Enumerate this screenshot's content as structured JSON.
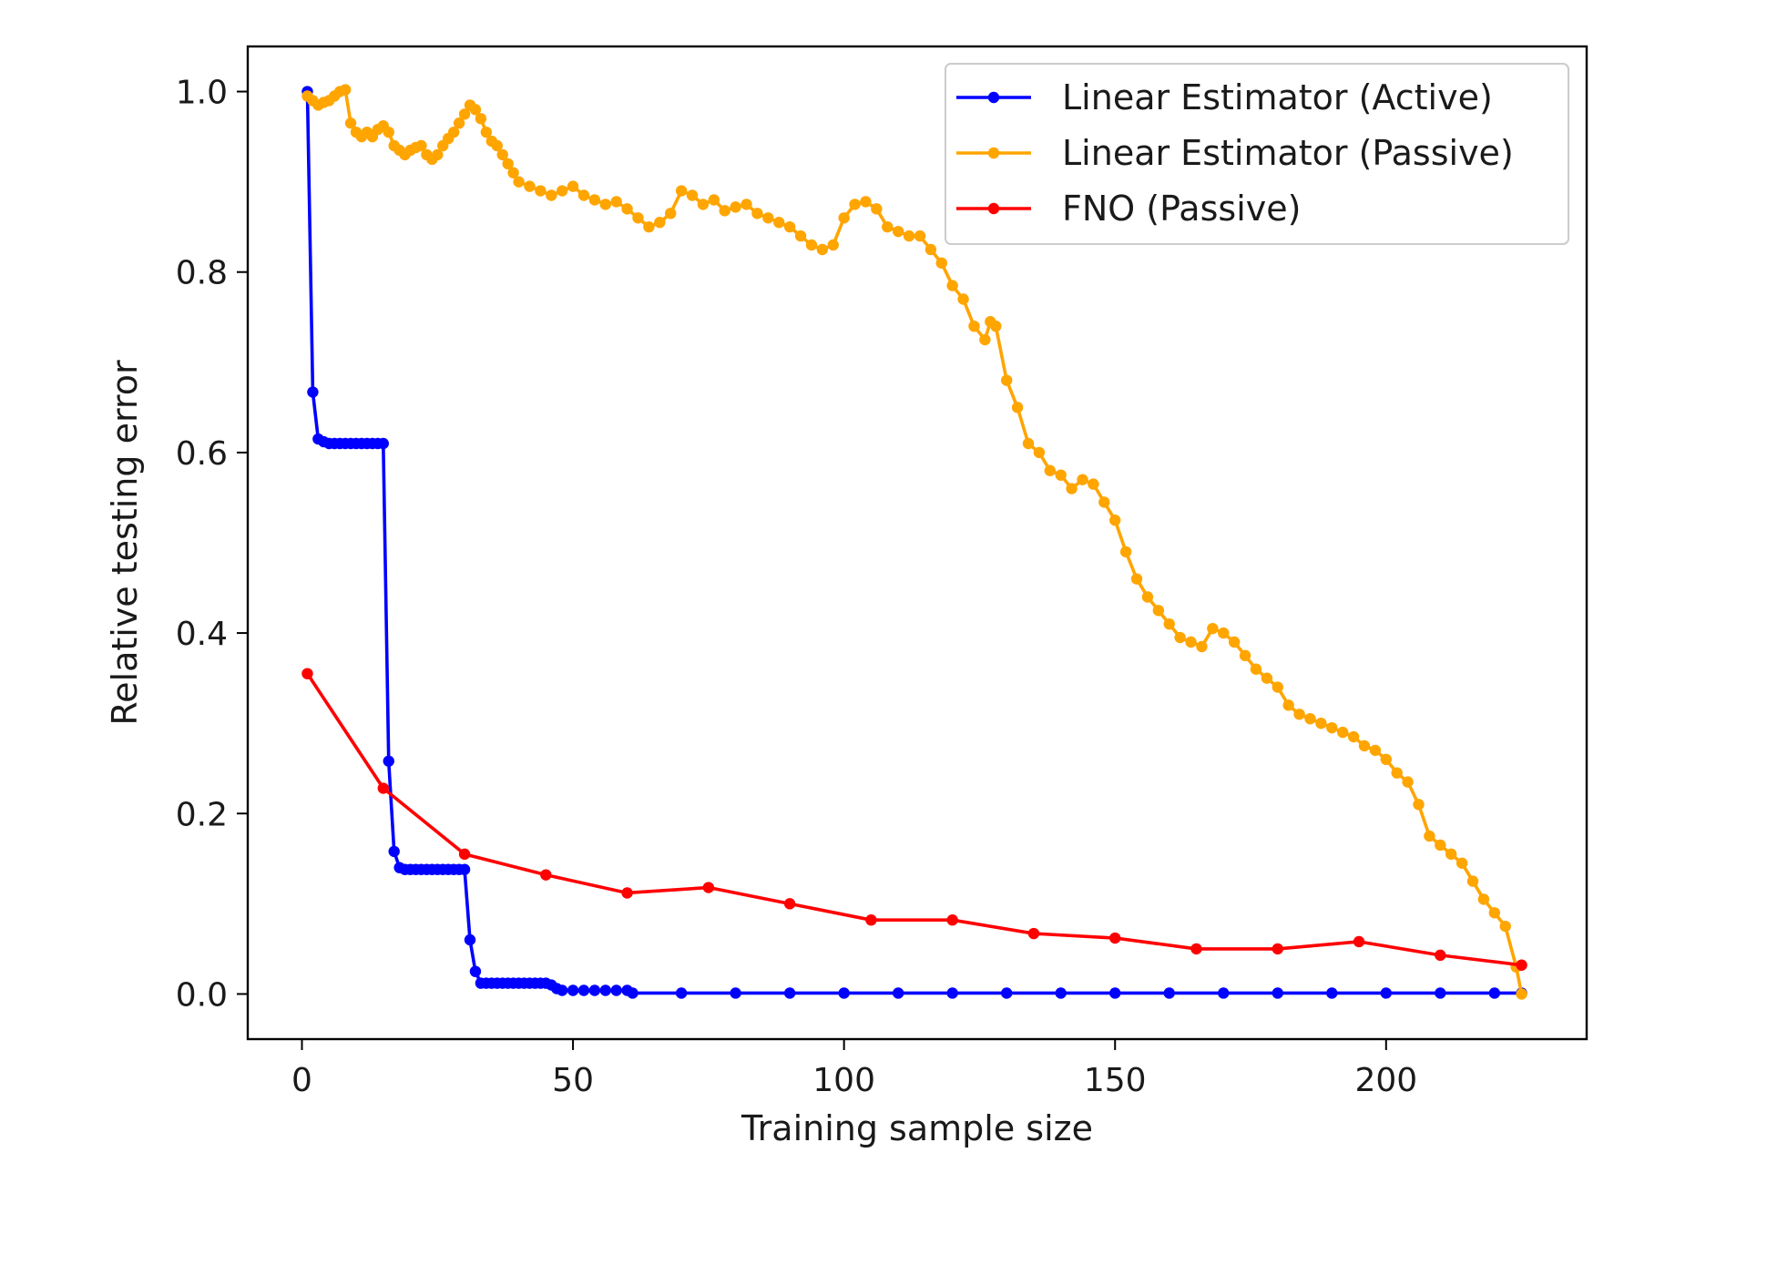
{
  "chart_data": {
    "type": "line",
    "title": "",
    "xlabel": "Training sample size",
    "ylabel": "Relative testing error",
    "xlim": [
      -10,
      237
    ],
    "ylim": [
      -0.05,
      1.05
    ],
    "xticks": [
      0,
      50,
      100,
      150,
      200
    ],
    "yticks": [
      0.0,
      0.2,
      0.4,
      0.6,
      0.8,
      1.0
    ],
    "xtick_labels": [
      "0",
      "50",
      "100",
      "150",
      "200"
    ],
    "ytick_labels": [
      "0.0",
      "0.2",
      "0.4",
      "0.6",
      "0.8",
      "1.0"
    ],
    "grid": false,
    "legend_position": "top-right",
    "series": [
      {
        "name": "Linear Estimator (Active)",
        "color": "#0000ff",
        "x": [
          1,
          2,
          3,
          4,
          5,
          6,
          7,
          8,
          9,
          10,
          11,
          12,
          13,
          14,
          15,
          16,
          17,
          18,
          19,
          20,
          21,
          22,
          23,
          24,
          25,
          26,
          27,
          28,
          29,
          30,
          31,
          32,
          33,
          34,
          35,
          36,
          37,
          38,
          39,
          40,
          41,
          42,
          43,
          44,
          45,
          46,
          47,
          48,
          50,
          52,
          54,
          56,
          58,
          60,
          61,
          70,
          80,
          90,
          100,
          110,
          120,
          130,
          140,
          150,
          160,
          170,
          180,
          190,
          200,
          210,
          220,
          225
        ],
        "y": [
          1.0,
          0.667,
          0.615,
          0.612,
          0.61,
          0.61,
          0.61,
          0.61,
          0.61,
          0.61,
          0.61,
          0.61,
          0.61,
          0.61,
          0.61,
          0.258,
          0.158,
          0.14,
          0.138,
          0.138,
          0.138,
          0.138,
          0.138,
          0.138,
          0.138,
          0.138,
          0.138,
          0.138,
          0.138,
          0.138,
          0.06,
          0.025,
          0.012,
          0.012,
          0.012,
          0.012,
          0.012,
          0.012,
          0.012,
          0.012,
          0.012,
          0.012,
          0.012,
          0.012,
          0.012,
          0.01,
          0.006,
          0.004,
          0.004,
          0.004,
          0.004,
          0.004,
          0.004,
          0.004,
          0.001,
          0.001,
          0.001,
          0.001,
          0.001,
          0.001,
          0.001,
          0.001,
          0.001,
          0.001,
          0.001,
          0.001,
          0.001,
          0.001,
          0.001,
          0.001,
          0.001,
          0.001
        ]
      },
      {
        "name": "Linear Estimator (Passive)",
        "color": "#ffa500",
        "x": [
          1,
          2,
          3,
          4,
          5,
          6,
          7,
          8,
          9,
          10,
          11,
          12,
          13,
          14,
          15,
          16,
          17,
          18,
          19,
          20,
          21,
          22,
          23,
          24,
          25,
          26,
          27,
          28,
          29,
          30,
          31,
          32,
          33,
          34,
          35,
          36,
          37,
          38,
          39,
          40,
          42,
          44,
          46,
          48,
          50,
          52,
          54,
          56,
          58,
          60,
          62,
          64,
          66,
          68,
          70,
          72,
          74,
          76,
          78,
          80,
          82,
          84,
          86,
          88,
          90,
          92,
          94,
          96,
          98,
          100,
          102,
          104,
          106,
          108,
          110,
          112,
          114,
          116,
          118,
          120,
          122,
          124,
          126,
          127,
          128,
          130,
          132,
          134,
          136,
          138,
          140,
          142,
          144,
          146,
          148,
          150,
          152,
          154,
          156,
          158,
          160,
          162,
          164,
          166,
          168,
          170,
          172,
          174,
          176,
          178,
          180,
          182,
          184,
          186,
          188,
          190,
          192,
          194,
          196,
          198,
          200,
          202,
          204,
          206,
          208,
          210,
          212,
          214,
          216,
          218,
          220,
          222,
          224,
          225
        ],
        "y": [
          0.995,
          0.99,
          0.985,
          0.988,
          0.99,
          0.995,
          1.0,
          1.002,
          0.965,
          0.955,
          0.95,
          0.955,
          0.95,
          0.958,
          0.962,
          0.955,
          0.94,
          0.935,
          0.93,
          0.935,
          0.938,
          0.94,
          0.93,
          0.925,
          0.93,
          0.94,
          0.948,
          0.955,
          0.965,
          0.975,
          0.985,
          0.98,
          0.97,
          0.955,
          0.945,
          0.94,
          0.93,
          0.92,
          0.91,
          0.9,
          0.895,
          0.89,
          0.885,
          0.89,
          0.895,
          0.885,
          0.88,
          0.875,
          0.878,
          0.87,
          0.86,
          0.85,
          0.855,
          0.865,
          0.89,
          0.885,
          0.875,
          0.88,
          0.868,
          0.872,
          0.875,
          0.865,
          0.86,
          0.855,
          0.85,
          0.84,
          0.83,
          0.825,
          0.83,
          0.86,
          0.875,
          0.878,
          0.87,
          0.85,
          0.845,
          0.84,
          0.84,
          0.825,
          0.81,
          0.785,
          0.77,
          0.74,
          0.725,
          0.745,
          0.74,
          0.68,
          0.65,
          0.61,
          0.6,
          0.58,
          0.575,
          0.56,
          0.57,
          0.565,
          0.545,
          0.525,
          0.49,
          0.46,
          0.44,
          0.425,
          0.41,
          0.395,
          0.39,
          0.385,
          0.405,
          0.4,
          0.39,
          0.375,
          0.36,
          0.35,
          0.34,
          0.32,
          0.31,
          0.305,
          0.3,
          0.295,
          0.29,
          0.285,
          0.275,
          0.27,
          0.26,
          0.245,
          0.235,
          0.21,
          0.175,
          0.165,
          0.155,
          0.145,
          0.125,
          0.105,
          0.09,
          0.075,
          0.03,
          0.0
        ]
      },
      {
        "name": "FNO (Passive)",
        "color": "#ff0000",
        "x": [
          1,
          15,
          30,
          45,
          60,
          75,
          90,
          105,
          120,
          135,
          150,
          165,
          180,
          195,
          210,
          225
        ],
        "y": [
          0.355,
          0.228,
          0.155,
          0.132,
          0.112,
          0.118,
          0.1,
          0.082,
          0.082,
          0.067,
          0.062,
          0.05,
          0.05,
          0.058,
          0.043,
          0.032
        ]
      }
    ]
  }
}
